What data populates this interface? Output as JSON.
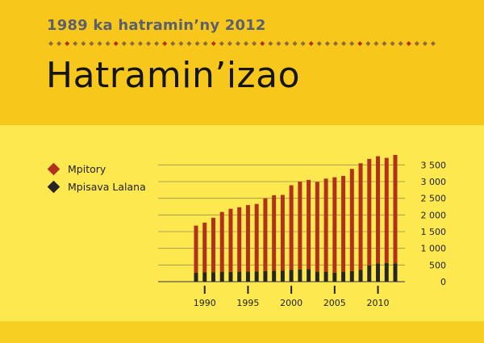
{
  "subtitle": "1989 ka hatramin’ny 2012",
  "title": "Hatramin’izao",
  "colors": {
    "mpitory": "#b2311c",
    "mpisava_lalana": "#262626",
    "accent": "#b2311c",
    "diamond": "#8c6b3a"
  },
  "chart_data": {
    "type": "bar",
    "stacked": true,
    "x": [
      1989,
      1990,
      1991,
      1992,
      1993,
      1994,
      1995,
      1996,
      1997,
      1998,
      1999,
      2000,
      2001,
      2002,
      2003,
      2004,
      2005,
      2006,
      2007,
      2008,
      2009,
      2010,
      2011,
      2012
    ],
    "series": [
      {
        "name": "Mpisava Lalana",
        "values": [
          270,
          280,
          285,
          290,
          295,
          300,
          305,
          310,
          320,
          330,
          335,
          350,
          370,
          380,
          300,
          300,
          270,
          300,
          320,
          360,
          490,
          550,
          560,
          550
        ]
      },
      {
        "name": "Mpitory",
        "values": [
          1410,
          1490,
          1630,
          1800,
          1890,
          1930,
          1990,
          2020,
          2180,
          2260,
          2265,
          2540,
          2630,
          2670,
          2690,
          2790,
          2860,
          2870,
          3060,
          3190,
          3190,
          3210,
          3150,
          3250
        ]
      }
    ],
    "x_ticks": [
      1990,
      1995,
      2000,
      2005,
      2010
    ],
    "y_ticks": [
      0,
      500,
      1000,
      1500,
      2000,
      2500,
      3000,
      3500
    ],
    "ylim": [
      0,
      3750
    ],
    "title": "",
    "xlabel": "",
    "ylabel": "",
    "grid": true,
    "legend": "top-left",
    "y_axis_side": "right"
  }
}
